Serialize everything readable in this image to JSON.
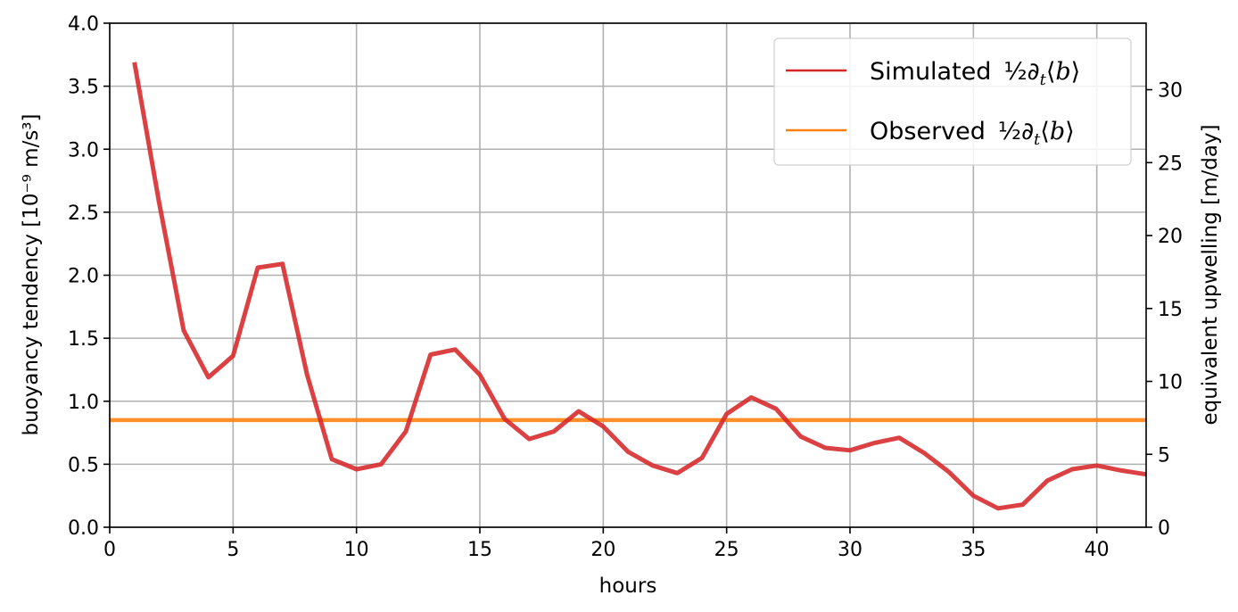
{
  "chart_data": {
    "type": "line",
    "title": "",
    "xlabel": "hours",
    "ylabel": "buoyancy tendency [10⁻⁹ m/s³]",
    "ylabel_right": "equivalent upwelling [m/day]",
    "xlim": [
      0,
      42
    ],
    "ylim": [
      0,
      4.0
    ],
    "ylim_right": [
      0,
      34.56
    ],
    "x_ticks": [
      "0",
      "5",
      "10",
      "15",
      "20",
      "25",
      "30",
      "35",
      "40"
    ],
    "y_ticks": [
      "0.0",
      "0.5",
      "1.0",
      "1.5",
      "2.0",
      "2.5",
      "3.0",
      "3.5",
      "4.0"
    ],
    "y_ticks_right": [
      "0",
      "5",
      "10",
      "15",
      "20",
      "25",
      "30"
    ],
    "grid": true,
    "legend_position": "top-right",
    "series": [
      {
        "name": "Simulated ½∂t⟨b⟩",
        "legend_word": "Simulated",
        "color": "#d62728",
        "x": [
          1,
          2,
          3,
          4,
          5,
          6,
          7,
          8,
          9,
          10,
          11,
          12,
          13,
          14,
          15,
          16,
          17,
          18,
          19,
          20,
          21,
          22,
          23,
          24,
          25,
          26,
          27,
          28,
          29,
          30,
          31,
          32,
          33,
          34,
          35,
          36,
          37,
          38,
          39,
          40,
          41,
          42
        ],
        "y": [
          3.69,
          2.58,
          1.56,
          1.19,
          1.36,
          2.06,
          2.09,
          1.21,
          0.54,
          0.46,
          0.5,
          0.76,
          1.37,
          1.41,
          1.21,
          0.86,
          0.7,
          0.76,
          0.92,
          0.8,
          0.6,
          0.49,
          0.43,
          0.55,
          0.9,
          1.03,
          0.94,
          0.72,
          0.63,
          0.61,
          0.67,
          0.71,
          0.59,
          0.44,
          0.25,
          0.15,
          0.18,
          0.37,
          0.46,
          0.49,
          0.45,
          0.42
        ]
      },
      {
        "name": "Observed ½∂t⟨b⟩",
        "legend_word": "Observed",
        "color": "#ff7f0e",
        "x": [
          0,
          42
        ],
        "y": [
          0.85,
          0.85
        ]
      }
    ]
  }
}
